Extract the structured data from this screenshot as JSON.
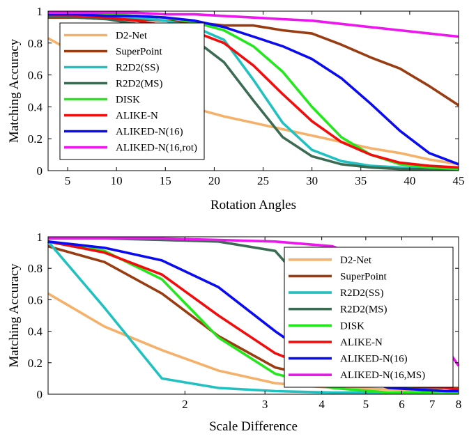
{
  "chart_data": [
    {
      "type": "line",
      "xlabel": "Rotation Angles",
      "ylabel": "Matching Accuracy",
      "xlim": [
        3,
        45
      ],
      "ylim": [
        0,
        1
      ],
      "x_scale": "linear",
      "x_ticks": [
        5,
        10,
        15,
        20,
        25,
        30,
        35,
        40,
        45
      ],
      "y_ticks": [
        0,
        0.2,
        0.4,
        0.6,
        0.8,
        1
      ],
      "y_tick_labels": [
        "0",
        "0.2",
        "0.4",
        "0.6",
        "0.8",
        "1"
      ],
      "legend_position": "upper-left",
      "series": [
        {
          "name": "D2-Net",
          "color": "#f5b16a",
          "x": [
            3,
            6,
            9,
            12,
            15,
            18,
            21,
            24,
            27,
            30,
            33,
            36,
            39,
            42,
            45
          ],
          "y": [
            0.83,
            0.73,
            0.62,
            0.52,
            0.45,
            0.39,
            0.34,
            0.3,
            0.26,
            0.22,
            0.18,
            0.14,
            0.11,
            0.07,
            0.04
          ]
        },
        {
          "name": "SuperPoint",
          "color": "#9a3c12",
          "x": [
            3,
            6,
            9,
            12,
            15,
            18,
            21,
            24,
            27,
            30,
            33,
            36,
            39,
            42,
            45
          ],
          "y": [
            0.96,
            0.96,
            0.95,
            0.95,
            0.94,
            0.93,
            0.91,
            0.91,
            0.88,
            0.86,
            0.79,
            0.71,
            0.64,
            0.53,
            0.41
          ]
        },
        {
          "name": "R2D2(SS)",
          "color": "#22c1c1",
          "x": [
            3,
            6,
            9,
            12,
            15,
            18,
            21,
            24,
            27,
            30,
            33,
            36,
            39,
            42,
            45
          ],
          "y": [
            0.97,
            0.97,
            0.97,
            0.96,
            0.94,
            0.9,
            0.82,
            0.57,
            0.3,
            0.13,
            0.06,
            0.03,
            0.02,
            0.01,
            0.01
          ]
        },
        {
          "name": "R2D2(MS)",
          "color": "#3b6b52",
          "x": [
            3,
            6,
            9,
            12,
            15,
            18,
            21,
            24,
            27,
            30,
            33,
            36,
            39,
            42,
            45
          ],
          "y": [
            0.97,
            0.96,
            0.95,
            0.92,
            0.88,
            0.82,
            0.68,
            0.44,
            0.21,
            0.09,
            0.04,
            0.02,
            0.01,
            0.01,
            0.01
          ]
        },
        {
          "name": "DISK",
          "color": "#22e81c",
          "x": [
            3,
            6,
            9,
            12,
            15,
            18,
            21,
            24,
            27,
            30,
            33,
            36,
            39,
            42,
            45
          ],
          "y": [
            0.98,
            0.98,
            0.98,
            0.97,
            0.96,
            0.93,
            0.88,
            0.78,
            0.62,
            0.4,
            0.21,
            0.1,
            0.04,
            0.02,
            0.01
          ]
        },
        {
          "name": "ALIKE-N",
          "color": "#f20d0d",
          "x": [
            3,
            6,
            9,
            12,
            15,
            18,
            21,
            24,
            27,
            30,
            33,
            36,
            39,
            42,
            45
          ],
          "y": [
            0.98,
            0.97,
            0.96,
            0.94,
            0.91,
            0.87,
            0.8,
            0.66,
            0.48,
            0.31,
            0.18,
            0.1,
            0.05,
            0.03,
            0.02
          ]
        },
        {
          "name": "ALIKED-N(16)",
          "color": "#0b0bf0",
          "x": [
            3,
            6,
            9,
            12,
            15,
            18,
            21,
            24,
            27,
            30,
            33,
            36,
            39,
            42,
            45
          ],
          "y": [
            0.98,
            0.98,
            0.97,
            0.97,
            0.96,
            0.94,
            0.9,
            0.84,
            0.78,
            0.7,
            0.58,
            0.42,
            0.25,
            0.11,
            0.04
          ]
        },
        {
          "name": "ALIKED-N(16,rot)",
          "color": "#ee16ee",
          "x": [
            3,
            6,
            9,
            12,
            15,
            18,
            21,
            24,
            27,
            30,
            33,
            36,
            39,
            42,
            45
          ],
          "y": [
            0.99,
            0.99,
            0.99,
            0.99,
            0.98,
            0.98,
            0.97,
            0.96,
            0.95,
            0.94,
            0.92,
            0.9,
            0.88,
            0.86,
            0.84
          ]
        }
      ]
    },
    {
      "type": "line",
      "xlabel": "Scale Difference",
      "ylabel": "Matching Accuracy",
      "xlim": [
        1,
        8
      ],
      "ylim": [
        0,
        1
      ],
      "x_scale": "log",
      "x_ticks": [
        2,
        3,
        4,
        5,
        6,
        7,
        8
      ],
      "y_ticks": [
        0,
        0.2,
        0.4,
        0.6,
        0.8,
        1
      ],
      "y_tick_labels": [
        "0",
        "0.2",
        "0.4",
        "0.6",
        "0.8",
        "1"
      ],
      "legend_position": "right",
      "series": [
        {
          "name": "D2-Net",
          "color": "#f5b16a",
          "x": [
            1,
            1.33,
            1.78,
            2.37,
            3.16,
            4.22,
            5.62,
            7.5,
            8
          ],
          "y": [
            0.64,
            0.43,
            0.28,
            0.15,
            0.07,
            0.04,
            0.03,
            0.02,
            0.02
          ]
        },
        {
          "name": "SuperPoint",
          "color": "#9a3c12",
          "x": [
            1,
            1.33,
            1.78,
            2.37,
            3.16,
            4.22,
            5.62,
            7.5,
            8
          ],
          "y": [
            0.94,
            0.84,
            0.64,
            0.37,
            0.17,
            0.09,
            0.05,
            0.04,
            0.04
          ]
        },
        {
          "name": "R2D2(SS)",
          "color": "#22c1c1",
          "x": [
            1,
            1.33,
            1.78,
            2.37,
            3.16,
            4.22,
            5.62,
            7.5,
            8
          ],
          "y": [
            0.97,
            0.55,
            0.1,
            0.04,
            0.02,
            0.01,
            0.01,
            0.01,
            0.01
          ]
        },
        {
          "name": "R2D2(MS)",
          "color": "#3b6b52",
          "x": [
            1,
            1.33,
            1.78,
            2.37,
            3.16,
            4.22,
            5.62,
            7.5,
            8
          ],
          "y": [
            0.99,
            0.99,
            0.98,
            0.97,
            0.91,
            0.5,
            0.05,
            0.01,
            0.01
          ]
        },
        {
          "name": "DISK",
          "color": "#22e81c",
          "x": [
            1,
            1.33,
            1.78,
            2.37,
            3.16,
            4.22,
            5.62,
            7.5,
            8
          ],
          "y": [
            0.97,
            0.91,
            0.73,
            0.36,
            0.13,
            0.04,
            0.01,
            0.01,
            0.01
          ]
        },
        {
          "name": "ALIKE-N",
          "color": "#f20d0d",
          "x": [
            1,
            1.33,
            1.78,
            2.37,
            3.16,
            4.22,
            5.62,
            7.5,
            8
          ],
          "y": [
            0.97,
            0.9,
            0.76,
            0.5,
            0.26,
            0.12,
            0.07,
            0.04,
            0.03
          ]
        },
        {
          "name": "ALIKED-N(16)",
          "color": "#0b0bf0",
          "x": [
            1,
            1.33,
            1.78,
            2.37,
            3.16,
            4.22,
            5.62,
            7.5,
            8
          ],
          "y": [
            0.97,
            0.93,
            0.85,
            0.68,
            0.4,
            0.15,
            0.04,
            0.02,
            0.02
          ]
        },
        {
          "name": "ALIKED-N(16,MS)",
          "color": "#ee16ee",
          "x": [
            1,
            1.33,
            1.78,
            2.37,
            3.16,
            4.22,
            5.62,
            7.5,
            8
          ],
          "y": [
            0.99,
            0.99,
            0.99,
            0.98,
            0.97,
            0.94,
            0.8,
            0.3,
            0.18
          ]
        }
      ]
    }
  ]
}
